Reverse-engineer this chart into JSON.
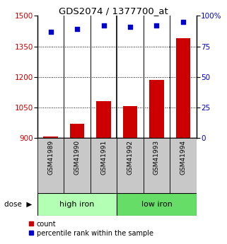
{
  "title": "GDS2074 / 1377700_at",
  "categories": [
    "GSM41989",
    "GSM41990",
    "GSM41991",
    "GSM41992",
    "GSM41993",
    "GSM41994"
  ],
  "bar_values": [
    905,
    970,
    1080,
    1055,
    1185,
    1390
  ],
  "dot_values": [
    87,
    89,
    92,
    91,
    92,
    95
  ],
  "ylim_left": [
    900,
    1500
  ],
  "ylim_right": [
    0,
    100
  ],
  "yticks_left": [
    900,
    1050,
    1200,
    1350,
    1500
  ],
  "ytick_labels_right": [
    "0",
    "25",
    "50",
    "75",
    "100%"
  ],
  "yticks_right": [
    0,
    25,
    50,
    75,
    100
  ],
  "groups": [
    {
      "label": "high iron",
      "indices": [
        0,
        1,
        2
      ],
      "color": "#b3ffb3"
    },
    {
      "label": "low iron",
      "indices": [
        3,
        4,
        5
      ],
      "color": "#66dd66"
    }
  ],
  "bar_color": "#cc0000",
  "dot_color": "#0000cc",
  "bar_width": 0.55,
  "left_axis_color": "#cc0000",
  "right_axis_color": "#0000cc",
  "legend_count": "count",
  "legend_pct": "percentile rank within the sample",
  "label_bg_color": "#c8c8c8",
  "dose_arrow": "▶"
}
